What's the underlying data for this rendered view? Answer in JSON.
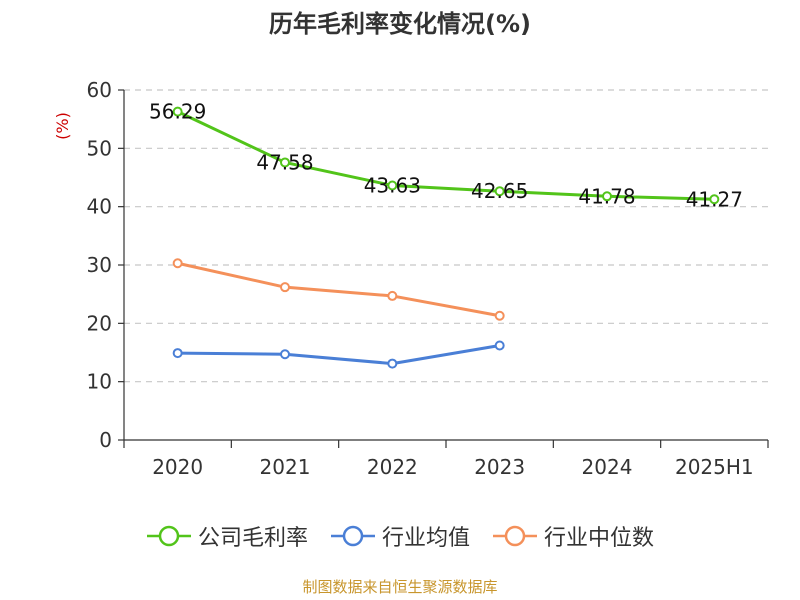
{
  "chart_data": {
    "type": "line",
    "title": "历年毛利率变化情况(%)",
    "ylabel": "(%)",
    "categories": [
      "2020",
      "2021",
      "2022",
      "2023",
      "2024",
      "2025H1"
    ],
    "ylim": [
      0,
      60
    ],
    "yticks": [
      0,
      10,
      20,
      30,
      40,
      50,
      60
    ],
    "grid": true,
    "legend_position": "bottom",
    "series": [
      {
        "name": "公司毛利率",
        "color": "#52c41a",
        "values": [
          56.29,
          47.58,
          43.63,
          42.65,
          41.78,
          41.27
        ],
        "labels": [
          "56.29",
          "47.58",
          "43.63",
          "42.65",
          "41.78",
          "41.27"
        ]
      },
      {
        "name": "行业均值",
        "color": "#4a7fd6",
        "values": [
          14.9,
          14.7,
          13.1,
          16.2,
          null,
          null
        ]
      },
      {
        "name": "行业中位数",
        "color": "#f4905a",
        "values": [
          30.3,
          26.2,
          24.7,
          21.3,
          null,
          null
        ]
      }
    ]
  },
  "footer": {
    "source": "制图数据来自恒生聚源数据库"
  }
}
